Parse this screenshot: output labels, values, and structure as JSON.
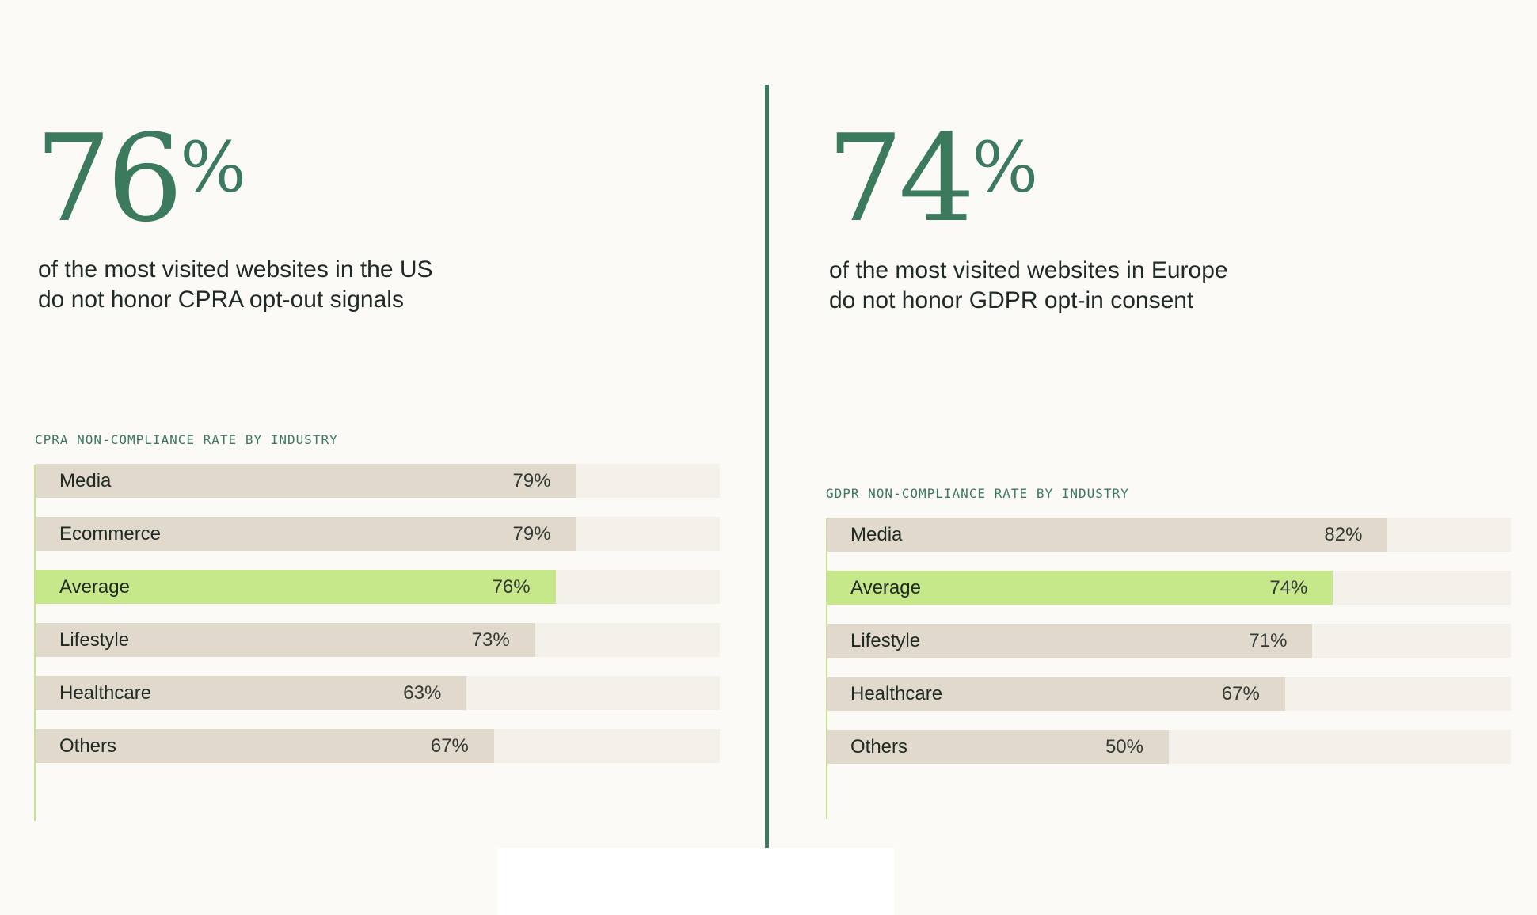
{
  "colors": {
    "accent": "#3b7a5c",
    "bar": "#e1d9cc",
    "track": "#f3f1ea",
    "highlight": "#c6e78a",
    "background": "#fbfaf6"
  },
  "left": {
    "stat_number": "76",
    "stat_suffix": "%",
    "desc_line1": "of the most visited websites in the US",
    "desc_line2": "do not honor CPRA opt-out signals"
  },
  "right": {
    "stat_number": "74",
    "stat_suffix": "%",
    "desc_line1": "of the most visited websites in Europe",
    "desc_line2": "do not honor GDPR opt-in consent"
  },
  "chart_data": [
    {
      "type": "bar",
      "orientation": "horizontal",
      "title": "CPRA NON-COMPLIANCE RATE BY INDUSTRY",
      "xlim": [
        0,
        100
      ],
      "categories": [
        "Media",
        "Ecommerce",
        "Average",
        "Lifestyle",
        "Healthcare",
        "Others"
      ],
      "values": [
        79,
        79,
        76,
        73,
        63,
        67
      ],
      "value_labels": [
        "79%",
        "79%",
        "76%",
        "73%",
        "63%",
        "67%"
      ],
      "highlight": "Average"
    },
    {
      "type": "bar",
      "orientation": "horizontal",
      "title": "GDPR NON-COMPLIANCE RATE BY INDUSTRY",
      "xlim": [
        0,
        100
      ],
      "categories": [
        "Media",
        "Average",
        "Lifestyle",
        "Healthcare",
        "Others"
      ],
      "values": [
        82,
        74,
        71,
        67,
        50
      ],
      "value_labels": [
        "82%",
        "74%",
        "71%",
        "67%",
        "50%"
      ],
      "highlight": "Average"
    }
  ]
}
